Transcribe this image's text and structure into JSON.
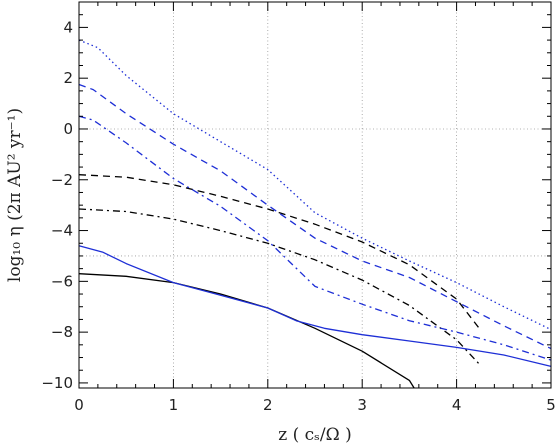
{
  "chart_data": {
    "type": "line",
    "title": "",
    "xlabel": "z  (  cₛ/Ω  )",
    "ylabel": "log₁₀ η  (2π AU² yr⁻¹)",
    "xlim": [
      0,
      5
    ],
    "ylim": [
      -10.2,
      5
    ],
    "xticks": [
      0,
      1,
      2,
      3,
      4,
      5
    ],
    "yticks": [
      -10,
      -8,
      -6,
      -4,
      -2,
      0,
      2,
      4
    ],
    "grid": "dotted at x=1,2,3,4 and y=-5,0",
    "colors": {
      "black": "#000000",
      "blue": "#1e2fd6",
      "grid": "#9a9a9a"
    },
    "series": [
      {
        "color": "#000000",
        "dash": "solid",
        "x": [
          0,
          0.5,
          1,
          1.5,
          2,
          2.5,
          3,
          3.5,
          3.55
        ],
        "y": [
          -5.7,
          -5.8,
          -6.05,
          -6.5,
          -7.05,
          -7.85,
          -8.75,
          -9.9,
          -10.2
        ]
      },
      {
        "color": "#000000",
        "dash": "dash",
        "x": [
          0,
          0.5,
          1,
          1.5,
          2,
          2.5,
          3,
          3.5,
          4,
          4.25
        ],
        "y": [
          -1.8,
          -1.9,
          -2.2,
          -2.65,
          -3.15,
          -3.75,
          -4.45,
          -5.35,
          -6.7,
          -7.9
        ]
      },
      {
        "color": "#000000",
        "dash": "dashdot",
        "x": [
          0,
          0.5,
          1,
          1.5,
          2,
          2.5,
          3,
          3.5,
          4,
          4.25
        ],
        "y": [
          -3.15,
          -3.25,
          -3.55,
          -4.0,
          -4.5,
          -5.15,
          -5.95,
          -6.95,
          -8.3,
          -9.3
        ]
      },
      {
        "color": "#1e2fd6",
        "dash": "solid",
        "x": [
          0,
          0.25,
          0.5,
          1,
          1.5,
          2,
          2.3,
          2.6,
          3,
          3.5,
          4,
          4.5,
          5
        ],
        "y": [
          -4.6,
          -4.85,
          -5.3,
          -6.05,
          -6.55,
          -7.05,
          -7.55,
          -7.85,
          -8.1,
          -8.35,
          -8.6,
          -8.9,
          -9.35
        ]
      },
      {
        "color": "#1e2fd6",
        "dash": "dash",
        "x": [
          0,
          0.15,
          0.5,
          1,
          1.5,
          2,
          2.5,
          3,
          3.5,
          4,
          4.5,
          5
        ],
        "y": [
          1.75,
          1.55,
          0.6,
          -0.6,
          -1.65,
          -3.0,
          -4.3,
          -5.2,
          -5.85,
          -6.8,
          -7.75,
          -8.65
        ]
      },
      {
        "color": "#1e2fd6",
        "dash": "dashdot",
        "x": [
          0,
          0.15,
          0.5,
          1,
          1.5,
          2,
          2.5,
          3,
          3.5,
          4,
          4.5,
          5
        ],
        "y": [
          0.5,
          0.35,
          -0.55,
          -1.95,
          -3.05,
          -4.4,
          -6.2,
          -6.9,
          -7.55,
          -8.0,
          -8.5,
          -9.1
        ]
      },
      {
        "color": "#1e2fd6",
        "dash": "dot",
        "x": [
          0,
          0.2,
          0.5,
          1,
          1.5,
          2,
          2.5,
          3,
          3.5,
          4,
          4.5,
          5
        ],
        "y": [
          3.5,
          3.2,
          2.1,
          0.6,
          -0.5,
          -1.6,
          -3.3,
          -4.3,
          -5.2,
          -6.05,
          -7.0,
          -7.9
        ]
      }
    ]
  }
}
